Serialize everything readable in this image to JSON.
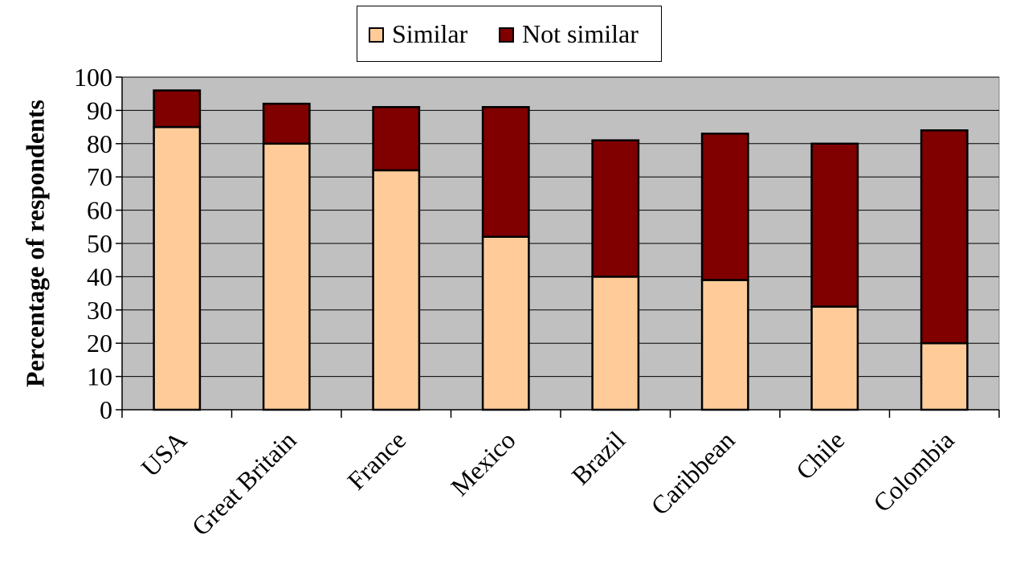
{
  "chart_data": {
    "type": "bar",
    "stacked": true,
    "title": "",
    "xlabel": "",
    "ylabel": "Percentage of respondents",
    "ylim": [
      0,
      100
    ],
    "yticks": [
      "0",
      "10",
      "20",
      "30",
      "40",
      "50",
      "60",
      "70",
      "80",
      "90",
      "100"
    ],
    "categories": [
      "USA",
      "Great Britain",
      "France",
      "Mexico",
      "Brazil",
      "Caribbean",
      "Chile",
      "Colombia"
    ],
    "series": [
      {
        "name": "Similar",
        "color": "#FFCC99",
        "values": [
          85,
          80,
          72,
          52,
          40,
          39,
          31,
          20
        ]
      },
      {
        "name": "Not similar",
        "color": "#800000",
        "values": [
          11,
          12,
          19,
          39,
          41,
          44,
          49,
          64
        ]
      }
    ],
    "grid": true,
    "plot_background": "#C0C0C0",
    "legend": {
      "position": "top",
      "items": [
        "Similar",
        "Not similar"
      ]
    }
  }
}
